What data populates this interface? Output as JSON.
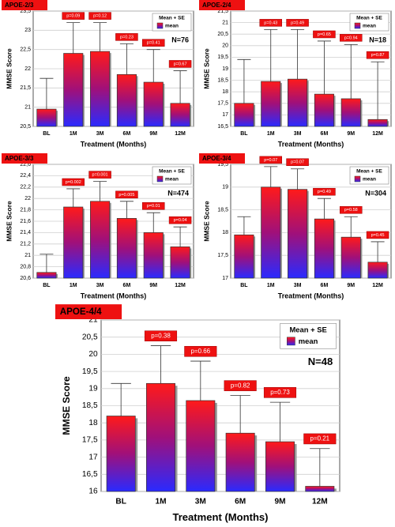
{
  "chart_data": [
    {
      "type": "bar",
      "title": "APOE-2/3",
      "annotation": "N=76",
      "x_label": "Treatment (Months)",
      "y_label": "MMSE Score",
      "legend_title": "Mean + SE",
      "categories": [
        "BL",
        "1M",
        "3M",
        "6M",
        "9M",
        "12M"
      ],
      "series": [
        {
          "name": "mean",
          "values": [
            20.95,
            22.4,
            22.45,
            21.85,
            21.65,
            21.1
          ],
          "errors": [
            0.8,
            0.8,
            0.75,
            0.8,
            0.85,
            0.85
          ]
        }
      ],
      "p_labels": [
        null,
        "p=0.09",
        "p=0.12",
        "p=0.23",
        "p=0.41",
        "p=0.67"
      ],
      "ylim": [
        20.5,
        23.5
      ],
      "yticks": [
        {
          "value": 20.5,
          "label": "20,5"
        },
        21,
        {
          "value": 21.5,
          "label": "21,5"
        },
        22,
        {
          "value": 22.5,
          "label": "22,5"
        },
        23,
        {
          "value": 23.5,
          "label": "23,5"
        }
      ],
      "grid": true
    },
    {
      "type": "bar",
      "title": "APOE-2/4",
      "annotation": "N=18",
      "x_label": "Treatment (Months)",
      "y_label": "MMSE Score",
      "legend_title": "Mean + SE",
      "categories": [
        "BL",
        "1M",
        "3M",
        "6M",
        "9M",
        "12M"
      ],
      "series": [
        {
          "name": "mean",
          "values": [
            17.5,
            18.45,
            18.55,
            17.9,
            17.7,
            16.8
          ],
          "errors": [
            1.9,
            2.25,
            2.15,
            2.3,
            2.35,
            2.5
          ]
        }
      ],
      "p_labels": [
        null,
        "p=0.43",
        "p=0.49",
        "p=0.65",
        "p=0.94",
        "p=0.87"
      ],
      "ylim": [
        16.5,
        21.5
      ],
      "yticks": [
        {
          "value": 16.5,
          "label": "16,5"
        },
        17,
        {
          "value": 17.5,
          "label": "17,5"
        },
        18,
        {
          "value": 18.5,
          "label": "18,5"
        },
        19,
        {
          "value": 19.5,
          "label": "19,5"
        },
        20,
        {
          "value": 20.5,
          "label": "20,5"
        },
        21,
        {
          "value": 21.5,
          "label": "21,5"
        }
      ],
      "grid": true
    },
    {
      "type": "bar",
      "title": "APOE-3/3",
      "annotation": "N=474",
      "x_label": "Treatment (Months)",
      "y_label": "MMSE Score",
      "legend_title": "Mean + SE",
      "categories": [
        "BL",
        "1M",
        "3M",
        "6M",
        "9M",
        "12M"
      ],
      "series": [
        {
          "name": "mean",
          "values": [
            20.7,
            21.85,
            21.95,
            21.65,
            21.4,
            21.15
          ],
          "errors": [
            0.32,
            0.32,
            0.35,
            0.3,
            0.35,
            0.35
          ]
        }
      ],
      "p_labels": [
        null,
        "p=0.002",
        "p=0.001",
        "p=0.005",
        "p=0.01",
        "p=0.04"
      ],
      "ylim": [
        20.6,
        22.6
      ],
      "yticks": [
        {
          "value": 20.6,
          "label": "20,6"
        },
        {
          "value": 20.8,
          "label": "20,8"
        },
        21,
        {
          "value": 21.2,
          "label": "21,2"
        },
        {
          "value": 21.4,
          "label": "21,4"
        },
        {
          "value": 21.6,
          "label": "21,6"
        },
        {
          "value": 21.8,
          "label": "21,8"
        },
        22,
        {
          "value": 22.2,
          "label": "22,2"
        },
        {
          "value": 22.4,
          "label": "22,4"
        },
        {
          "value": 22.6,
          "label": "22,6"
        }
      ],
      "grid": true
    },
    {
      "type": "bar",
      "title": "APOE-3/4",
      "annotation": "N=304",
      "x_label": "Treatment (Months)",
      "y_label": "MMSE Score",
      "legend_title": "Mean + SE",
      "categories": [
        "BL",
        "1M",
        "3M",
        "6M",
        "9M",
        "12M"
      ],
      "series": [
        {
          "name": "mean",
          "values": [
            17.95,
            19.0,
            18.95,
            18.3,
            17.9,
            17.35
          ],
          "errors": [
            0.4,
            0.45,
            0.45,
            0.45,
            0.45,
            0.45
          ]
        }
      ],
      "p_labels": [
        null,
        "p=0.07",
        "p=0.07",
        "p=0.49",
        "p=0.58",
        "p=0.45"
      ],
      "ylim": [
        17,
        19.5
      ],
      "yticks": [
        17,
        {
          "value": 17.5,
          "label": "17,5"
        },
        18,
        {
          "value": 18.5,
          "label": "18,5"
        },
        19,
        {
          "value": 19.5,
          "label": "19,5"
        }
      ],
      "grid": true
    },
    {
      "type": "bar",
      "title": "APOE-4/4",
      "annotation": "N=48",
      "x_label": "Treatment (Months)",
      "y_label": "MMSE Score",
      "legend_title": "Mean + SE",
      "categories": [
        "BL",
        "1M",
        "3M",
        "6M",
        "9M",
        "12M"
      ],
      "series": [
        {
          "name": "mean",
          "values": [
            18.2,
            19.15,
            18.65,
            17.7,
            17.45,
            16.15
          ],
          "errors": [
            0.95,
            1.1,
            1.15,
            1.1,
            1.15,
            1.1
          ]
        }
      ],
      "p_labels": [
        null,
        "p=0.38",
        "p=0.66",
        "p=0.82",
        "p=0.73",
        "p=0.21"
      ],
      "ylim": [
        16,
        21
      ],
      "yticks": [
        16,
        {
          "value": 16.5,
          "label": "16,5"
        },
        17,
        {
          "value": 17.5,
          "label": "17,5"
        },
        18,
        {
          "value": 18.5,
          "label": "18,5"
        },
        19,
        {
          "value": 19.5,
          "label": "19,5"
        },
        20,
        {
          "value": 20.5,
          "label": "20,5"
        },
        21
      ],
      "grid": true
    }
  ]
}
